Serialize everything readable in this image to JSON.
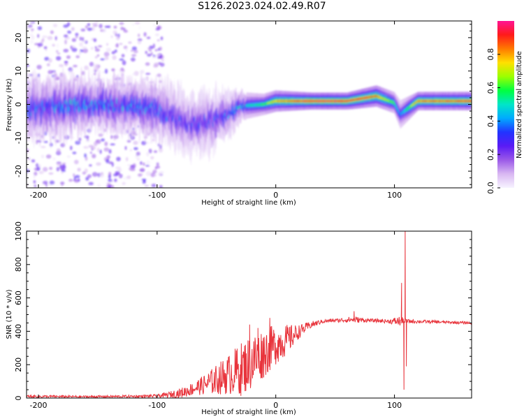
{
  "title": "S126.2023.024.02.49.R07",
  "colors": {
    "axis": "#000000",
    "snr_line": "#e8343c",
    "colormap": [
      "#f7f4ff",
      "#d9b8f2",
      "#9b59e8",
      "#5a1bf5",
      "#2233ff",
      "#00aaff",
      "#00e6c8",
      "#00ff40",
      "#9cff00",
      "#ffe000",
      "#ff7a00",
      "#ff1a1a",
      "#ff1493"
    ]
  },
  "colorbar": {
    "label": "Normalized spectral amplitude",
    "ticks": [
      "0.0",
      "0.2",
      "0.4",
      "0.6",
      "0.8"
    ]
  },
  "chart_data": [
    {
      "type": "heatmap",
      "xlabel": "Height of straight line (km)",
      "ylabel": "Frequency (Hz)",
      "xlim": [
        -210,
        165
      ],
      "ylim": [
        -25,
        25
      ],
      "xticks": [
        -200,
        -100,
        0,
        100
      ],
      "yticks": [
        20,
        10,
        0,
        -10,
        -20
      ],
      "colormap_range": [
        0,
        1
      ],
      "ridge": [
        {
          "x": -210,
          "freq": -1.5,
          "width": 4,
          "amp": 0.35
        },
        {
          "x": -180,
          "freq": -0.5,
          "width": 4,
          "amp": 0.4
        },
        {
          "x": -150,
          "freq": 0,
          "width": 3.5,
          "amp": 0.4
        },
        {
          "x": -120,
          "freq": -0.5,
          "width": 3.5,
          "amp": 0.4
        },
        {
          "x": -100,
          "freq": -1.5,
          "width": 4,
          "amp": 0.35
        },
        {
          "x": -85,
          "freq": -4,
          "width": 4,
          "amp": 0.3
        },
        {
          "x": -70,
          "freq": -6,
          "width": 4,
          "amp": 0.3
        },
        {
          "x": -55,
          "freq": -5,
          "width": 4,
          "amp": 0.3
        },
        {
          "x": -40,
          "freq": -3,
          "width": 3,
          "amp": 0.35
        },
        {
          "x": -30,
          "freq": -0.5,
          "width": 2,
          "amp": 0.45
        },
        {
          "x": -10,
          "freq": 0,
          "width": 1.5,
          "amp": 0.6
        },
        {
          "x": 0,
          "freq": 1,
          "width": 1.5,
          "amp": 0.8
        },
        {
          "x": 30,
          "freq": 1,
          "width": 1.2,
          "amp": 0.95
        },
        {
          "x": 60,
          "freq": 1,
          "width": 1.2,
          "amp": 0.95
        },
        {
          "x": 85,
          "freq": 2.5,
          "width": 1.5,
          "amp": 0.85
        },
        {
          "x": 100,
          "freq": 0.5,
          "width": 1.5,
          "amp": 0.6
        },
        {
          "x": 105,
          "freq": -3,
          "width": 2,
          "amp": 0.4
        },
        {
          "x": 120,
          "freq": 1,
          "width": 1.3,
          "amp": 0.85
        },
        {
          "x": 165,
          "freq": 1,
          "width": 1.3,
          "amp": 0.9
        }
      ]
    },
    {
      "type": "line",
      "xlabel": "Height of straight line (km)",
      "ylabel": "SNR (10 * v/v)",
      "xlim": [
        -210,
        165
      ],
      "ylim": [
        0,
        1000
      ],
      "xticks": [
        -200,
        -100,
        0,
        100
      ],
      "yticks": [
        0,
        200,
        400,
        600,
        800,
        1000
      ],
      "series": [
        {
          "envelope": [
            {
              "x": -210,
              "y": 10,
              "noise": 8
            },
            {
              "x": -160,
              "y": 8,
              "noise": 6
            },
            {
              "x": -120,
              "y": 10,
              "noise": 8
            },
            {
              "x": -100,
              "y": 12,
              "noise": 10
            },
            {
              "x": -90,
              "y": 20,
              "noise": 18
            },
            {
              "x": -80,
              "y": 30,
              "noise": 30
            },
            {
              "x": -70,
              "y": 55,
              "noise": 40
            },
            {
              "x": -60,
              "y": 80,
              "noise": 60
            },
            {
              "x": -50,
              "y": 110,
              "noise": 90
            },
            {
              "x": -40,
              "y": 140,
              "noise": 120
            },
            {
              "x": -30,
              "y": 170,
              "noise": 160
            },
            {
              "x": -20,
              "y": 220,
              "noise": 170
            },
            {
              "x": -10,
              "y": 270,
              "noise": 150
            },
            {
              "x": 0,
              "y": 320,
              "noise": 120
            },
            {
              "x": 10,
              "y": 350,
              "noise": 90
            },
            {
              "x": 20,
              "y": 400,
              "noise": 40
            },
            {
              "x": 30,
              "y": 440,
              "noise": 20
            },
            {
              "x": 40,
              "y": 460,
              "noise": 12
            },
            {
              "x": 50,
              "y": 465,
              "noise": 10
            },
            {
              "x": 65,
              "y": 470,
              "noise": 20
            },
            {
              "x": 80,
              "y": 465,
              "noise": 10
            },
            {
              "x": 95,
              "y": 460,
              "noise": 12
            },
            {
              "x": 104,
              "y": 460,
              "noise": 30
            },
            {
              "x": 112,
              "y": 460,
              "noise": 12
            },
            {
              "x": 140,
              "y": 455,
              "noise": 8
            },
            {
              "x": 165,
              "y": 450,
              "noise": 8
            }
          ],
          "spikes": [
            {
              "x": -22,
              "y": 440
            },
            {
              "x": -15,
              "y": 420
            },
            {
              "x": -5,
              "y": 480
            },
            {
              "x": 66,
              "y": 520
            },
            {
              "x": 106,
              "y": 690
            },
            {
              "x": 108,
              "y": 50
            },
            {
              "x": 109,
              "y": 1000
            },
            {
              "x": 110,
              "y": 190
            }
          ]
        }
      ]
    }
  ]
}
